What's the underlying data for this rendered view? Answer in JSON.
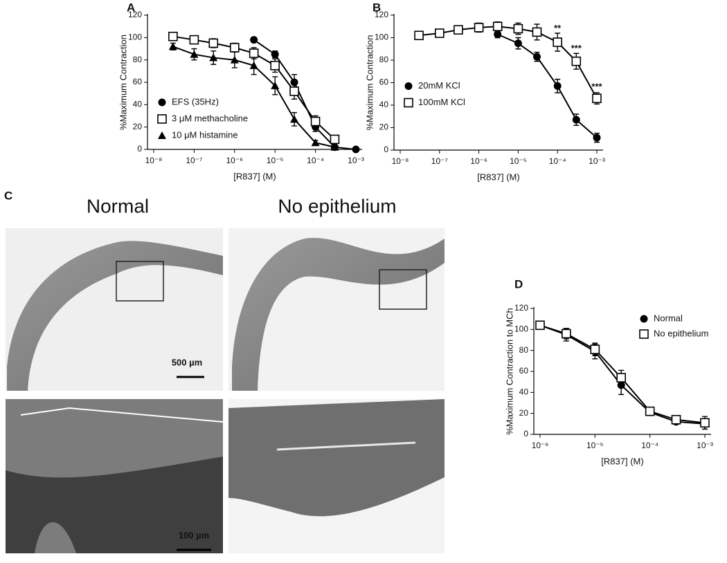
{
  "figure": {
    "panel_c": {
      "letter": "C",
      "titles": [
        "Normal",
        "No epithelium"
      ],
      "scale_bars": [
        "500 µm",
        "100 µm"
      ]
    }
  },
  "chart_data": [
    {
      "type": "line",
      "letter": "A",
      "x_label": "[R837] (M)",
      "y_label": "%Maximum Contraction",
      "x": [
        3e-08,
        1e-07,
        3e-07,
        1e-06,
        3e-06,
        1e-05,
        3e-05,
        0.0001,
        0.0003,
        0.001
      ],
      "log_x": true,
      "xlim": [
        1e-08,
        0.001
      ],
      "xticks": [
        {
          "value": 1e-08,
          "label": "10⁻⁸"
        },
        {
          "value": 1e-07,
          "label": "10⁻⁷"
        },
        {
          "value": 1e-06,
          "label": "10⁻⁶"
        },
        {
          "value": 1e-05,
          "label": "10⁻⁵"
        },
        {
          "value": 0.0001,
          "label": "10⁻⁴"
        },
        {
          "value": 0.001,
          "label": "10⁻³"
        }
      ],
      "ylim": [
        0,
        120
      ],
      "yticks": [
        0,
        20,
        40,
        60,
        80,
        100,
        120
      ],
      "legend": "lower-left",
      "series": [
        {
          "name": "EFS (35Hz)",
          "color": "#000000",
          "marker": "circle",
          "values": [
            null,
            null,
            null,
            null,
            98,
            85,
            60,
            20,
            2,
            0
          ],
          "errors": [
            null,
            null,
            null,
            null,
            2,
            3,
            7,
            4,
            2,
            1
          ]
        },
        {
          "name": "3 μM methacholine",
          "color": "#000000",
          "marker": "square",
          "values": [
            101,
            98,
            95,
            91,
            86,
            75,
            52,
            25,
            9,
            null
          ],
          "errors": [
            3,
            3,
            4,
            4,
            5,
            6,
            7,
            5,
            3,
            null
          ]
        },
        {
          "name": "10 μM histamine",
          "color": "#000000",
          "marker": "triangle",
          "values": [
            92,
            85,
            82,
            80,
            75,
            57,
            27,
            6,
            2,
            null
          ],
          "errors": [
            3,
            5,
            6,
            7,
            8,
            8,
            6,
            2,
            1,
            null
          ]
        }
      ]
    },
    {
      "type": "line",
      "letter": "B",
      "x_label": "[R837] (M)",
      "y_label": "%Maximum Contraction",
      "x": [
        3e-08,
        1e-07,
        3e-07,
        1e-06,
        3e-06,
        1e-05,
        3e-05,
        0.0001,
        0.0003,
        0.001
      ],
      "log_x": true,
      "xlim": [
        1e-08,
        0.001
      ],
      "xticks": [
        {
          "value": 1e-08,
          "label": "10⁻⁸"
        },
        {
          "value": 1e-07,
          "label": "10⁻⁷"
        },
        {
          "value": 1e-06,
          "label": "10⁻⁶"
        },
        {
          "value": 1e-05,
          "label": "10⁻⁵"
        },
        {
          "value": 0.0001,
          "label": "10⁻⁴"
        },
        {
          "value": 0.001,
          "label": "10⁻³"
        }
      ],
      "ylim": [
        0,
        120
      ],
      "yticks": [
        0,
        20,
        40,
        60,
        80,
        100,
        120
      ],
      "legend": "center-left",
      "series": [
        {
          "name": "20mM KCl",
          "color": "#000000",
          "marker": "circle",
          "values": [
            null,
            null,
            null,
            null,
            103,
            95,
            83,
            57,
            27,
            11
          ],
          "errors": [
            null,
            null,
            null,
            null,
            3,
            5,
            4,
            6,
            5,
            4
          ]
        },
        {
          "name": "100mM KCl",
          "color": "#000000",
          "marker": "square",
          "values": [
            102,
            104,
            107,
            109,
            110,
            108,
            105,
            96,
            79,
            46
          ],
          "errors": [
            2,
            2,
            3,
            4,
            4,
            5,
            7,
            8,
            7,
            5
          ]
        }
      ],
      "annotations": [
        {
          "text": "**",
          "x": 0.0001,
          "y": 108
        },
        {
          "text": "***",
          "x": 0.0003,
          "y": 90
        },
        {
          "text": "***",
          "x": 0.001,
          "y": 56
        }
      ]
    },
    {
      "type": "line",
      "letter": "D",
      "x_label": "[R837] (M)",
      "y_label": "%Maximum Contraction to MCh",
      "x": [
        1e-06,
        3e-06,
        1e-05,
        3e-05,
        0.0001,
        0.0003,
        0.001
      ],
      "log_x": true,
      "xlim": [
        1e-06,
        0.001
      ],
      "xticks": [
        {
          "value": 1e-06,
          "label": "10⁻⁶"
        },
        {
          "value": 1e-05,
          "label": "10⁻⁵"
        },
        {
          "value": 0.0001,
          "label": "10⁻⁴"
        },
        {
          "value": 0.001,
          "label": "10⁻³"
        }
      ],
      "ylim": [
        0,
        120
      ],
      "yticks": [
        0,
        20,
        40,
        60,
        80,
        100,
        120
      ],
      "legend": "upper-right",
      "series": [
        {
          "name": "Normal",
          "color": "#000000",
          "marker": "circle",
          "values": [
            104,
            95,
            79,
            47,
            21,
            12,
            10
          ],
          "errors": [
            2,
            6,
            7,
            9,
            3,
            2,
            5
          ]
        },
        {
          "name": "No epithelium",
          "color": "#000000",
          "marker": "square",
          "values": [
            104,
            96,
            81,
            54,
            22,
            14,
            11
          ],
          "errors": [
            2,
            5,
            6,
            7,
            3,
            2,
            6
          ]
        }
      ]
    }
  ]
}
